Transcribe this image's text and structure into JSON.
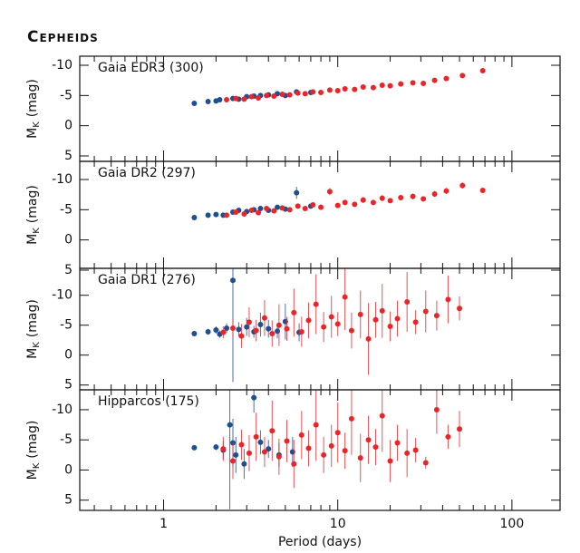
{
  "header": {
    "title": "Cepheids"
  },
  "chart_data": [
    {
      "type": "scatter",
      "label": "Gaia EDR3 (300)",
      "ylabel": {
        "symbol": "M",
        "subscript": "K",
        "unit": "(mag)"
      },
      "xlim": [
        0.33,
        189
      ],
      "xticks": [
        1,
        10,
        100
      ],
      "xminorticks": [
        0.4,
        0.5,
        0.6,
        0.7,
        0.8,
        0.9,
        2,
        3,
        4,
        5,
        6,
        7,
        8,
        9,
        20,
        30,
        40,
        50,
        60,
        70,
        80,
        90
      ],
      "log_x": true,
      "ylim": [
        5.9,
        -11.5
      ],
      "yticks": [
        -10,
        -5,
        0,
        5
      ],
      "series": [
        {
          "name": "blue",
          "color": "#1f4f8f",
          "x": [
            1.5,
            1.8,
            2.0,
            2.1,
            2.5,
            2.7,
            3.0,
            3.3,
            3.6,
            4.0,
            4.5,
            5.0,
            5.8,
            7.0
          ],
          "values": [
            -3.7,
            -4.0,
            -4.1,
            -4.3,
            -4.5,
            -4.4,
            -4.8,
            -4.9,
            -5.0,
            -5.1,
            -5.3,
            -5.0,
            -5.6,
            -5.5
          ]
        },
        {
          "name": "red",
          "color": "#e8262a",
          "x": [
            2.3,
            2.6,
            2.9,
            3.2,
            3.5,
            3.9,
            4.3,
            4.8,
            5.3,
            5.9,
            6.5,
            7.2,
            8.0,
            9.0,
            10,
            11,
            12.5,
            14,
            16,
            18,
            20,
            23,
            27,
            31,
            36,
            42,
            52,
            68
          ],
          "values": [
            -4.3,
            -4.5,
            -4.4,
            -4.8,
            -4.6,
            -5.0,
            -4.9,
            -5.2,
            -5.1,
            -5.4,
            -5.3,
            -5.6,
            -5.5,
            -5.9,
            -5.8,
            -6.1,
            -6.0,
            -6.4,
            -6.3,
            -6.7,
            -6.6,
            -6.9,
            -7.1,
            -7.0,
            -7.5,
            -7.8,
            -8.3,
            -9.1
          ]
        }
      ]
    },
    {
      "type": "scatter",
      "label": "Gaia DR2 (297)",
      "ylabel": {
        "symbol": "M",
        "subscript": "K",
        "unit": "(mag)"
      },
      "xlim": [
        0.33,
        189
      ],
      "xticks": [
        1,
        10,
        100
      ],
      "xminorticks": [
        0.4,
        0.5,
        0.6,
        0.7,
        0.8,
        0.9,
        2,
        3,
        4,
        5,
        6,
        7,
        8,
        9,
        20,
        30,
        40,
        50,
        60,
        70,
        80,
        90
      ],
      "log_x": true,
      "ylim": [
        4.7,
        -13
      ],
      "yticks": [
        -10,
        -5,
        0,
        5
      ],
      "series": [
        {
          "name": "blue",
          "color": "#1f4f8f",
          "x": [
            1.5,
            1.8,
            2.0,
            2.2,
            2.5,
            2.7,
            3.0,
            3.3,
            3.6,
            4.0,
            4.5,
            5.0,
            5.8,
            7.0
          ],
          "values": [
            -3.7,
            -4.1,
            -4.2,
            -4.1,
            -4.6,
            -4.9,
            -4.7,
            -5.0,
            -5.2,
            -4.9,
            -5.4,
            -5.1,
            -7.8,
            -5.6
          ],
          "errors": [
            0.1,
            0.1,
            0.1,
            0.1,
            0.2,
            0.3,
            0.2,
            0.2,
            0.3,
            0.2,
            0.3,
            0.2,
            1.0,
            0.3
          ]
        },
        {
          "name": "red",
          "color": "#e8262a",
          "x": [
            2.3,
            2.6,
            2.9,
            3.2,
            3.5,
            3.9,
            4.3,
            4.8,
            5.3,
            5.9,
            6.5,
            7.2,
            8.0,
            9.0,
            10,
            11,
            12.5,
            14,
            16,
            18,
            20,
            23,
            27,
            31,
            36,
            42,
            52,
            68
          ],
          "values": [
            -4.1,
            -4.6,
            -4.3,
            -4.9,
            -4.5,
            -5.2,
            -4.8,
            -5.3,
            -5.0,
            -5.6,
            -5.2,
            -5.8,
            -5.4,
            -8.0,
            -5.7,
            -6.2,
            -5.9,
            -6.6,
            -6.2,
            -6.9,
            -6.5,
            -7.0,
            -7.2,
            -6.8,
            -7.6,
            -8.1,
            -9.0,
            -8.2
          ],
          "errors": [
            0.2,
            0.2,
            0.2,
            0.3,
            0.2,
            0.3,
            0.2,
            0.3,
            0.3,
            0.3,
            0.3,
            0.4,
            0.3,
            0.6,
            0.3,
            0.4,
            0.3,
            0.5,
            0.4,
            0.5,
            0.4,
            0.4,
            0.5,
            0.4,
            0.5,
            0.5,
            0.5,
            0.4
          ]
        }
      ]
    },
    {
      "type": "scatter",
      "label": "Gaia DR1 (276)",
      "ylabel": {
        "symbol": "M",
        "subscript": "K",
        "unit": "(mag)"
      },
      "xlim": [
        0.33,
        189
      ],
      "xticks": [
        1,
        10,
        100
      ],
      "xminorticks": [
        0.4,
        0.5,
        0.6,
        0.7,
        0.8,
        0.9,
        2,
        3,
        4,
        5,
        6,
        7,
        8,
        9,
        20,
        30,
        40,
        50,
        60,
        70,
        80,
        90
      ],
      "log_x": true,
      "ylim": [
        5.8,
        -14.5
      ],
      "yticks": [
        -10,
        -5,
        0,
        5
      ],
      "series": [
        {
          "name": "blue",
          "color": "#1f4f8f",
          "x": [
            1.5,
            1.8,
            2.0,
            2.1,
            2.3,
            2.5,
            2.7,
            3.0,
            3.3,
            3.6,
            4.0,
            4.5,
            5.0,
            6.0
          ],
          "values": [
            -3.6,
            -3.9,
            -4.2,
            -3.5,
            -4.5,
            -12.5,
            -4.3,
            -4.7,
            -3.9,
            -5.1,
            -4.4,
            -4.0,
            -5.6,
            -3.8
          ],
          "errors": [
            0.4,
            0.5,
            0.6,
            0.6,
            0.8,
            17,
            1.2,
            1.5,
            1.0,
            2.0,
            1.5,
            1.2,
            3.0,
            1.5
          ]
        },
        {
          "name": "red",
          "color": "#e8262a",
          "x": [
            2.2,
            2.5,
            2.8,
            3.1,
            3.4,
            3.8,
            4.2,
            4.6,
            5.1,
            5.6,
            6.2,
            6.8,
            7.5,
            8.3,
            9.2,
            10,
            11,
            12,
            13.5,
            15,
            16.5,
            18,
            20,
            22,
            25,
            28,
            32,
            37,
            43,
            50
          ],
          "values": [
            -3.8,
            -4.5,
            -3.2,
            -5.5,
            -4.1,
            -6.2,
            -3.6,
            -5.0,
            -4.4,
            -7.1,
            -3.9,
            -5.8,
            -8.5,
            -4.7,
            -6.4,
            -5.2,
            -9.7,
            -4.1,
            -6.8,
            -2.7,
            -5.9,
            -7.4,
            -4.8,
            -6.1,
            -8.9,
            -5.5,
            -7.3,
            -6.6,
            -9.3,
            -7.8
          ],
          "errors": [
            1.0,
            1.5,
            2.0,
            2.5,
            1.8,
            3.0,
            2.2,
            3.5,
            2.0,
            4.0,
            2.5,
            3.0,
            5.0,
            2.5,
            3.5,
            2.0,
            5.5,
            3.0,
            4.0,
            6.0,
            3.0,
            4.5,
            2.5,
            3.0,
            5.0,
            2.0,
            3.5,
            2.5,
            4.0,
            2.0
          ]
        }
      ]
    },
    {
      "type": "scatter",
      "label": "Hipparcos (175)",
      "ylabel": {
        "symbol": "M",
        "subscript": "K",
        "unit": "(mag)"
      },
      "xlabel": "Period (days)",
      "xlim": [
        0.33,
        189
      ],
      "xticks": [
        1,
        10,
        100
      ],
      "xminorticks": [
        0.4,
        0.5,
        0.6,
        0.7,
        0.8,
        0.9,
        2,
        3,
        4,
        5,
        6,
        7,
        8,
        9,
        20,
        30,
        40,
        50,
        60,
        70,
        80,
        90
      ],
      "log_x": true,
      "ylim": [
        6.7,
        -13.3
      ],
      "yticks": [
        -10,
        -5,
        0,
        5
      ],
      "series": [
        {
          "name": "blue",
          "color": "#1f4f8f",
          "x": [
            1.5,
            2.0,
            2.2,
            2.4,
            2.5,
            2.6,
            2.9,
            3.3,
            3.6,
            4.0,
            4.6,
            5.5
          ],
          "values": [
            -3.7,
            -3.8,
            -3.3,
            -7.5,
            -4.5,
            -2.5,
            -1.0,
            -12.0,
            -4.6,
            -3.5,
            -2.5,
            -3.0
          ],
          "errors": [
            0.3,
            0.5,
            1.5,
            14,
            4,
            3,
            2.5,
            2.5,
            2,
            1.5,
            2,
            2.5
          ]
        },
        {
          "name": "red",
          "color": "#e8262a",
          "x": [
            2.2,
            2.5,
            2.8,
            3.1,
            3.4,
            3.8,
            4.2,
            4.6,
            5.1,
            5.6,
            6.2,
            6.8,
            7.5,
            8.3,
            9.2,
            10,
            11,
            12,
            13.5,
            15,
            16.5,
            18,
            20,
            22,
            25,
            28,
            32,
            37,
            43,
            50
          ],
          "values": [
            -3.5,
            -1.5,
            -4.2,
            -2.8,
            -5.5,
            -3.0,
            -6.5,
            -2.2,
            -4.8,
            -1.0,
            -5.8,
            -3.6,
            -7.5,
            -2.5,
            -4.0,
            -6.2,
            -3.2,
            -8.5,
            -2.0,
            -5.0,
            -3.8,
            -9.0,
            -1.5,
            -4.5,
            -2.8,
            -3.3,
            -1.2,
            -10.0,
            -5.5,
            -6.8
          ],
          "errors": [
            2,
            3,
            2.5,
            3,
            4,
            2.5,
            5,
            3,
            3.5,
            4,
            4,
            3,
            6,
            3,
            3.5,
            5,
            3,
            6,
            4,
            4,
            3,
            6,
            3.5,
            3,
            4,
            2,
            1,
            4,
            2,
            3
          ]
        }
      ]
    }
  ]
}
